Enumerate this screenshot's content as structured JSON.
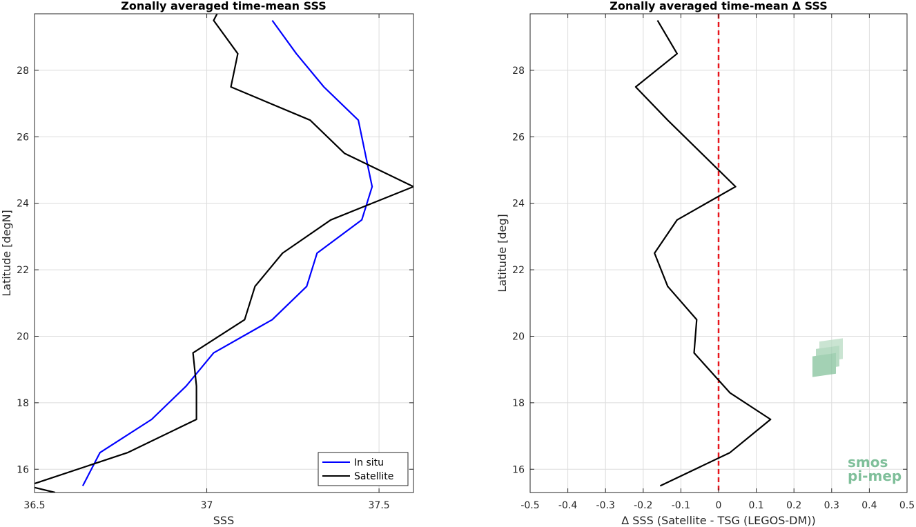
{
  "chart_data": [
    {
      "type": "line",
      "title": "Zonally averaged time-mean SSS",
      "xlabel": "SSS",
      "ylabel": "Latitude [degN]",
      "xlim": [
        36.5,
        37.6
      ],
      "ylim": [
        15.3,
        29.7
      ],
      "xticks": [
        "36.5",
        "37",
        "37.5"
      ],
      "yticks": [
        "16",
        "18",
        "20",
        "22",
        "24",
        "26",
        "28"
      ],
      "xtick_values": [
        36.5,
        37,
        37.5
      ],
      "ytick_values": [
        16,
        18,
        20,
        22,
        24,
        26,
        28
      ],
      "grid": true,
      "legend": "bottom-right",
      "series": [
        {
          "name": "In situ",
          "color": "#0000ff",
          "x": [
            36.64,
            36.69,
            36.84,
            36.94,
            37.02,
            37.19,
            37.29,
            37.32,
            37.45,
            37.48,
            37.44,
            37.34,
            37.26,
            37.19
          ],
          "y": [
            15.5,
            16.5,
            17.5,
            18.5,
            19.5,
            20.5,
            21.5,
            22.5,
            23.5,
            24.5,
            26.5,
            27.5,
            28.5,
            29.5
          ]
        },
        {
          "name": "Satellite",
          "color": "#000000",
          "x": [
            36.56,
            36.48,
            36.77,
            36.97,
            36.97,
            36.96,
            37.11,
            37.14,
            37.22,
            37.36,
            37.6,
            37.4,
            37.3,
            37.07,
            37.09,
            37.02,
            37.03
          ],
          "y": [
            15.3,
            15.5,
            16.5,
            17.5,
            18.5,
            19.5,
            20.5,
            21.5,
            22.5,
            23.5,
            24.5,
            25.5,
            26.5,
            27.5,
            28.5,
            29.5,
            29.7
          ]
        }
      ]
    },
    {
      "type": "line",
      "title": "Zonally averaged time-mean Δ SSS",
      "xlabel": "Δ SSS (Satellite - TSG (LEGOS-DM))",
      "ylabel": "Latitude [deg]",
      "xlim": [
        -0.5,
        0.5
      ],
      "ylim": [
        15.3,
        29.7
      ],
      "xticks": [
        "-0.5",
        "-0.4",
        "-0.3",
        "-0.2",
        "-0.1",
        "0",
        "0.1",
        "0.2",
        "0.3",
        "0.4",
        "0.5"
      ],
      "yticks": [
        "16",
        "18",
        "20",
        "22",
        "24",
        "26",
        "28"
      ],
      "xtick_values": [
        -0.5,
        -0.4,
        -0.3,
        -0.2,
        -0.1,
        0,
        0.1,
        0.2,
        0.3,
        0.4,
        0.5
      ],
      "ytick_values": [
        16,
        18,
        20,
        22,
        24,
        26,
        28
      ],
      "grid": true,
      "reference_line": {
        "x": 0,
        "color": "#e8141b",
        "style": "dashed"
      },
      "series": [
        {
          "color": "#000000",
          "x": [
            -0.155,
            0.03,
            0.138,
            0.03,
            -0.065,
            -0.058,
            -0.135,
            -0.17,
            -0.11,
            0.045,
            -0.135,
            -0.22,
            -0.11,
            -0.162
          ],
          "y": [
            15.5,
            16.5,
            17.5,
            18.3,
            19.5,
            20.5,
            21.5,
            22.5,
            23.5,
            24.5,
            26.5,
            27.5,
            28.5,
            29.5
          ]
        }
      ]
    }
  ],
  "logo": {
    "line1": "smos",
    "line2": "pi-mep",
    "color": "#7fbf9a",
    "icon": "layered-map-icon"
  }
}
